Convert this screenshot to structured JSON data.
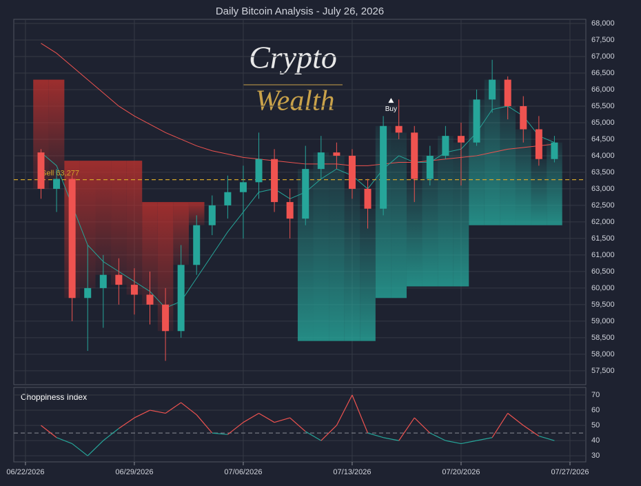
{
  "chart_data": [
    {
      "type": "candlestick",
      "title": "Daily Bitcoin Analysis - July 26, 2026",
      "logo": [
        "Crypto",
        "Wealth"
      ],
      "x": [
        1,
        2,
        3,
        4,
        5,
        6,
        7,
        8,
        9,
        10,
        11,
        12,
        13,
        14,
        15,
        16,
        17,
        18,
        19,
        20,
        21,
        22,
        23,
        24,
        25,
        26,
        27,
        28,
        29,
        30,
        31,
        32,
        33,
        34
      ],
      "open": [
        64100,
        63000,
        63300,
        59700,
        60000,
        60400,
        60100,
        59800,
        59500,
        58700,
        60700,
        61900,
        62500,
        62900,
        63200,
        63900,
        62600,
        62100,
        63600,
        64100,
        64000,
        63000,
        62400,
        64900,
        64700,
        63300,
        64000,
        64600,
        64400,
        65700,
        66300,
        65500,
        64800,
        63900
      ],
      "high": [
        64200,
        63600,
        63400,
        61300,
        61000,
        60900,
        60600,
        60500,
        60000,
        61300,
        62200,
        62800,
        63400,
        63700,
        64700,
        64200,
        63000,
        64300,
        64600,
        64400,
        64200,
        63300,
        65200,
        65700,
        64900,
        64300,
        64900,
        65000,
        66000,
        66900,
        66400,
        65800,
        65200,
        64600
      ],
      "low": [
        62700,
        62300,
        59000,
        58100,
        58800,
        59500,
        59200,
        58900,
        57800,
        58500,
        60400,
        61600,
        62100,
        61500,
        62700,
        62300,
        61500,
        61900,
        63300,
        63600,
        62700,
        61800,
        62200,
        64500,
        62600,
        63100,
        63900,
        63100,
        64300,
        65300,
        65100,
        64400,
        63700,
        63800
      ],
      "close": [
        63000,
        63300,
        59700,
        60000,
        60400,
        60100,
        59800,
        59500,
        58700,
        60700,
        61900,
        62500,
        62900,
        63200,
        63900,
        62600,
        62100,
        63600,
        64100,
        64000,
        63000,
        62400,
        64900,
        64700,
        63300,
        64000,
        64600,
        64400,
        65700,
        66300,
        65500,
        64800,
        63900,
        64400
      ],
      "up_color": "#26a69a",
      "down_color": "#ef5350",
      "series": [
        {
          "values": [
            67400,
            67100,
            66700,
            66300,
            65900,
            65500,
            65200,
            64950,
            64700,
            64500,
            64300,
            64150,
            64050,
            63950,
            63900,
            63850,
            63800,
            63750,
            63750,
            63750,
            63700,
            63700,
            63750,
            63800,
            63800,
            63850,
            63900,
            63950,
            64000,
            64100,
            64200,
            64250,
            64300,
            64350
          ],
          "color": "#ef5350"
        },
        {
          "values": [
            64100,
            63700,
            62500,
            61300,
            60800,
            60500,
            60200,
            59900,
            59400,
            59600,
            60300,
            61000,
            61700,
            62300,
            62900,
            63000,
            62700,
            62900,
            63300,
            63600,
            63400,
            63000,
            63600,
            64000,
            63800,
            63800,
            64100,
            64200,
            64700,
            65400,
            65500,
            65200,
            64600,
            64400
          ],
          "color": "#26a69a"
        }
      ],
      "stop": [
        66300,
        66300,
        63850,
        63850,
        63850,
        63850,
        63850,
        62600,
        62600,
        62600,
        62600,
        null,
        null,
        null,
        null,
        null,
        null,
        58400,
        58400,
        58400,
        58400,
        58400,
        59700,
        59700,
        60050,
        60050,
        60050,
        60050,
        61900,
        61900,
        61900,
        61900,
        61900,
        61900
      ],
      "sell": {
        "label": "Sell 63,277",
        "value": 63277,
        "color": "#d4a62a"
      },
      "buy": {
        "label": "Buy",
        "x": 23.5,
        "value": 65600
      },
      "xlim": [
        -0.75,
        36.02
      ],
      "xticks": [
        {
          "value": 0,
          "label": "06/22/2026"
        },
        {
          "value": 7,
          "label": "06/29/2026"
        },
        {
          "value": 14,
          "label": "07/06/2026"
        },
        {
          "value": 21,
          "label": "07/13/2026"
        },
        {
          "value": 28,
          "label": "07/20/2026"
        },
        {
          "value": 35,
          "label": "07/27/2026"
        }
      ],
      "ylim": [
        57080,
        68125
      ],
      "yticks": [
        {
          "value": 57500,
          "label": "57,500"
        },
        {
          "value": 58000,
          "label": "58,000"
        },
        {
          "value": 58500,
          "label": "58,500"
        },
        {
          "value": 59000,
          "label": "59,000"
        },
        {
          "value": 59500,
          "label": "59,500"
        },
        {
          "value": 60000,
          "label": "60,000"
        },
        {
          "value": 60500,
          "label": "60,500"
        },
        {
          "value": 61000,
          "label": "61,000"
        },
        {
          "value": 61500,
          "label": "61,500"
        },
        {
          "value": 62000,
          "label": "62,000"
        },
        {
          "value": 62500,
          "label": "62,500"
        },
        {
          "value": 63000,
          "label": "63,000"
        },
        {
          "value": 63500,
          "label": "63,500"
        },
        {
          "value": 64000,
          "label": "64,000"
        },
        {
          "value": 64500,
          "label": "64,500"
        },
        {
          "value": 65000,
          "label": "65,000"
        },
        {
          "value": 65500,
          "label": "65,500"
        },
        {
          "value": 66000,
          "label": "66,000"
        },
        {
          "value": 66500,
          "label": "66,500"
        },
        {
          "value": 67000,
          "label": "67,000"
        },
        {
          "value": 67500,
          "label": "67,500"
        },
        {
          "value": 68000,
          "label": "68,000"
        }
      ],
      "grid": true
    },
    {
      "type": "line",
      "title": "Choppiness Index",
      "x": [
        1,
        2,
        3,
        4,
        5,
        6,
        7,
        8,
        9,
        10,
        11,
        12,
        13,
        14,
        15,
        16,
        17,
        18,
        19,
        20,
        21,
        22,
        23,
        24,
        25,
        26,
        27,
        28,
        29,
        30,
        31,
        32,
        33,
        34
      ],
      "values": [
        50,
        42,
        38,
        30,
        40,
        48,
        55,
        60,
        58,
        65,
        57,
        45,
        44,
        52,
        58,
        52,
        55,
        46,
        40,
        50,
        70,
        45,
        42,
        40,
        55,
        45,
        40,
        38,
        40,
        42,
        58,
        50,
        43,
        40
      ],
      "threshold": 45,
      "above_color": "#ef5350",
      "below_color": "#26a69a",
      "xlim": [
        -0.75,
        36.02
      ],
      "ylim": [
        26,
        75
      ],
      "yticks": [
        30,
        40,
        50,
        60,
        70
      ],
      "grid": true
    }
  ]
}
